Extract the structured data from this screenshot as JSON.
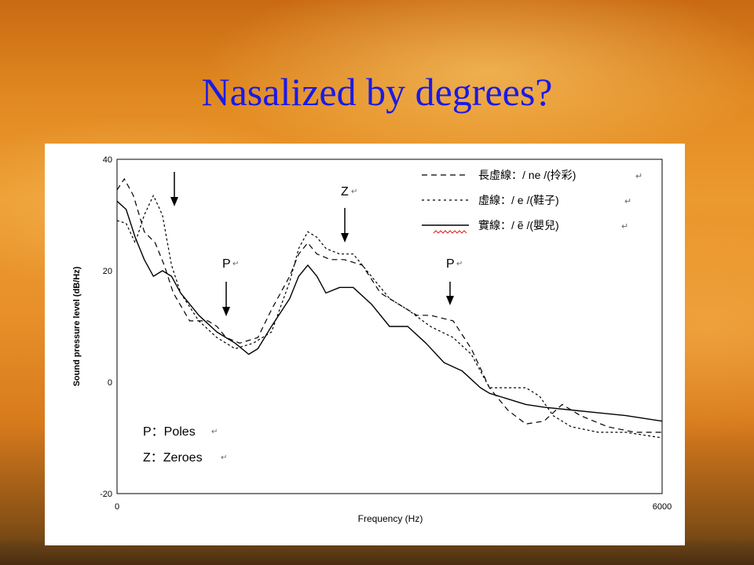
{
  "slide": {
    "title": "Nasalized by degrees?"
  },
  "chart_data": {
    "type": "line",
    "title": "",
    "xlabel": "Frequency (Hz)",
    "ylabel": "Sound pressure level (dB/Hz)",
    "xlim": [
      0,
      6000
    ],
    "ylim": [
      -20,
      40
    ],
    "x_ticks": [
      "0",
      "6000"
    ],
    "y_ticks": [
      "40",
      "20",
      "0",
      "-20"
    ],
    "grid": false,
    "legend_position": "top-right",
    "series": [
      {
        "name": "長虛線：/ ne /(拎彩)",
        "style": "long-dash",
        "x": [
          0,
          80,
          180,
          300,
          420,
          520,
          620,
          800,
          1000,
          1100,
          1200,
          1350,
          1550,
          1700,
          1900,
          2000,
          2100,
          2200,
          2350,
          2500,
          2700,
          2900,
          3100,
          3300,
          3450,
          3700,
          3900,
          4100,
          4300,
          4500,
          4700,
          4900,
          5100,
          5400,
          5700,
          6000
        ],
        "y": [
          34.5,
          36.5,
          33.5,
          27,
          25,
          21,
          16,
          11,
          11,
          10,
          8,
          7,
          8,
          13,
          19,
          23,
          25,
          23,
          22,
          22,
          21,
          16,
          14,
          12,
          12,
          11,
          6,
          -1,
          -5,
          -7.5,
          -7,
          -4,
          -6,
          -8,
          -9,
          -9
        ],
        "color": "#000000"
      },
      {
        "name": "虛線：/ e /(鞋子)",
        "style": "short-dash",
        "x": [
          0,
          100,
          200,
          300,
          400,
          500,
          600,
          700,
          900,
          1100,
          1300,
          1500,
          1700,
          1900,
          2000,
          2100,
          2200,
          2300,
          2450,
          2600,
          2800,
          3000,
          3200,
          3450,
          3700,
          3900,
          4100,
          4200,
          4350,
          4500,
          4650,
          4800,
          5000,
          5300,
          5600,
          6000
        ],
        "y": [
          29,
          28.5,
          25,
          30,
          33.5,
          30,
          21,
          16,
          11,
          8,
          6,
          7,
          9,
          18,
          24,
          27,
          26,
          24,
          23,
          23,
          19,
          15,
          13,
          10,
          8,
          5,
          -1,
          -1,
          -1,
          -1,
          -2.5,
          -6,
          -8,
          -9,
          -9,
          -10
        ],
        "color": "#000000"
      },
      {
        "name": "實線：/ ẽ /(嬰兒)",
        "style": "solid",
        "x": [
          0,
          100,
          200,
          300,
          400,
          500,
          600,
          700,
          900,
          1100,
          1300,
          1450,
          1550,
          1700,
          1900,
          2000,
          2100,
          2200,
          2300,
          2450,
          2600,
          2800,
          3000,
          3200,
          3400,
          3600,
          3800,
          4000,
          4100,
          4300,
          4500,
          4700,
          5000,
          5300,
          5600,
          6000
        ],
        "y": [
          32.5,
          31,
          26,
          22,
          19,
          20,
          19,
          16,
          12,
          9,
          7,
          5,
          6,
          10,
          15,
          19,
          21,
          19,
          16,
          17,
          17,
          14,
          10,
          10,
          7,
          3.5,
          2,
          -1,
          -2,
          -3,
          -4,
          -4.5,
          -5,
          -5.5,
          -6,
          -7
        ],
        "color": "#000000"
      }
    ],
    "annotations": [
      {
        "label": "Z",
        "x": 2550,
        "y": 22
      },
      {
        "label": "P",
        "x": 1230,
        "y": 10
      },
      {
        "label": "P",
        "x": 3750,
        "y": 13
      }
    ],
    "notes": [
      "P：Poles",
      "Z：Zeroes"
    ]
  },
  "icons": {
    "paragraph_mark": "↵"
  }
}
